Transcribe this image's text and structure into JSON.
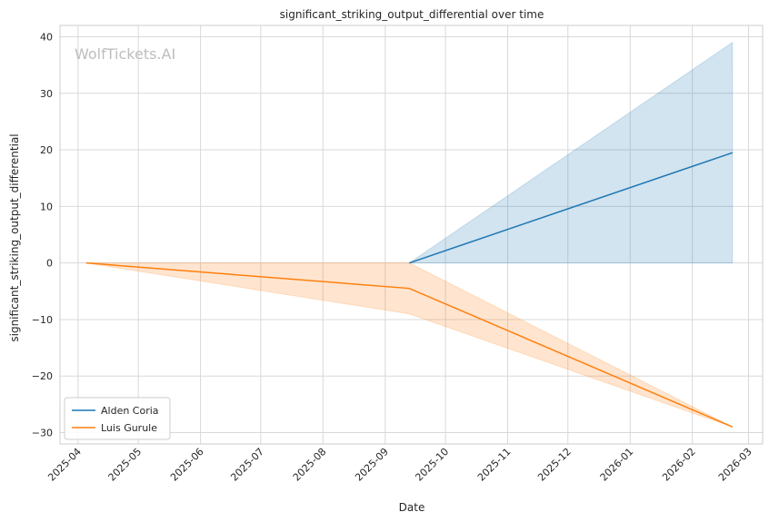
{
  "chart_data": {
    "type": "line",
    "title": "significant_striking_output_differential over time",
    "xlabel": "Date",
    "ylabel": "significant_striking_output_differential",
    "watermark": "WolfTickets.AI",
    "x_ticks": [
      "2025-04",
      "2025-05",
      "2025-06",
      "2025-07",
      "2025-08",
      "2025-09",
      "2025-10",
      "2025-11",
      "2025-12",
      "2026-01",
      "2026-02",
      "2026-03"
    ],
    "y_ticks": [
      -30,
      -20,
      -10,
      0,
      10,
      20,
      30,
      40
    ],
    "xlim": [
      "2025-03-23",
      "2026-03-08"
    ],
    "ylim": [
      -32,
      42
    ],
    "grid": true,
    "legend_position": "lower-left",
    "series": [
      {
        "name": "Alden Coria",
        "color": "#1f77b4",
        "points": [
          {
            "x": "2025-09-13",
            "y": 0
          },
          {
            "x": "2026-02-21",
            "y": 19.5
          }
        ],
        "band": [
          {
            "x": "2025-09-13",
            "low": 0,
            "high": 0
          },
          {
            "x": "2026-02-21",
            "low": 0,
            "high": 39
          }
        ]
      },
      {
        "name": "Luis Gurule",
        "color": "#ff7f0e",
        "points": [
          {
            "x": "2025-04-05",
            "y": 0
          },
          {
            "x": "2025-09-13",
            "y": -4.5
          },
          {
            "x": "2026-02-21",
            "y": -29
          }
        ],
        "band": [
          {
            "x": "2025-04-05",
            "low": 0,
            "high": 0
          },
          {
            "x": "2025-09-13",
            "low": -9,
            "high": 0
          },
          {
            "x": "2026-02-21",
            "low": -29,
            "high": -29
          }
        ]
      }
    ]
  }
}
